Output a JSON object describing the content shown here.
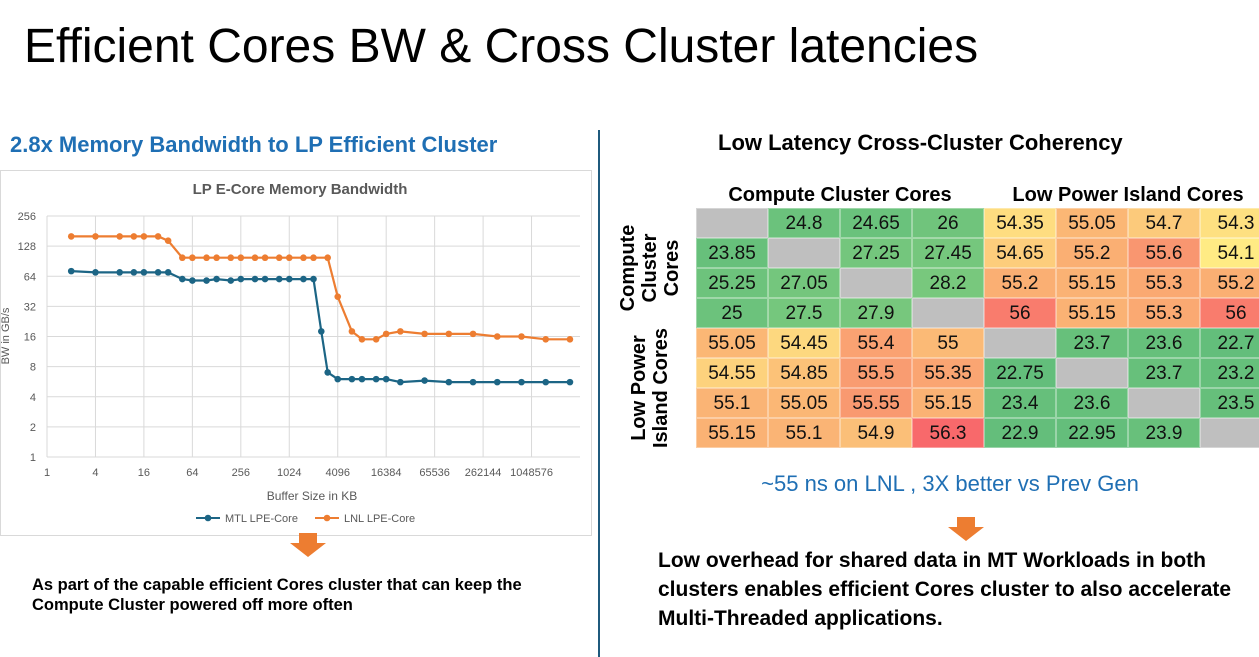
{
  "slide_title": "Efficient Cores BW & Cross Cluster latencies",
  "left_heading": "2.8x Memory Bandwidth to LP Efficient Cluster",
  "right_heading": "Low Latency Cross-Cluster Coherency",
  "left_note": "As part of the capable efficient Cores cluster that can keep the Compute Cluster powered off more often",
  "latency_caption": "~55 ns on LNL , 3X better vs Prev Gen",
  "right_note": "Low overhead for shared data in MT Workloads in both clusters enables efficient Cores cluster to also accelerate Multi-Threaded applications.",
  "colors": {
    "accent_blue": "#1f6fb4",
    "mtl": "#1c6585",
    "lnl": "#ed7d31",
    "arrow": "#ed7d31",
    "divider": "#1f5a7d"
  },
  "chart_data": [
    {
      "type": "line",
      "title": "LP E-Core Memory Bandwidth",
      "xlabel": "Buffer Size in KB",
      "ylabel": "BW in GB/s",
      "xscale": "log2",
      "yscale": "log2",
      "xlim": [
        1,
        4194304
      ],
      "ylim": [
        1,
        256
      ],
      "x_ticks": [
        "1",
        "4",
        "16",
        "64",
        "256",
        "1024",
        "4096",
        "16384",
        "65536",
        "262144",
        "1048576"
      ],
      "y_ticks": [
        "1",
        "2",
        "4",
        "8",
        "16",
        "32",
        "64",
        "128",
        "256"
      ],
      "legend_position": "bottom",
      "grid": true,
      "series": [
        {
          "name": "MTL LPE-Core",
          "color": "#1c6585",
          "points": [
            [
              2,
              72
            ],
            [
              4,
              70
            ],
            [
              8,
              70
            ],
            [
              12,
              70
            ],
            [
              16,
              70
            ],
            [
              24,
              70
            ],
            [
              32,
              70
            ],
            [
              48,
              60
            ],
            [
              64,
              58
            ],
            [
              96,
              58
            ],
            [
              128,
              60
            ],
            [
              192,
              58
            ],
            [
              256,
              60
            ],
            [
              384,
              60
            ],
            [
              512,
              60
            ],
            [
              768,
              60
            ],
            [
              1024,
              60
            ],
            [
              1536,
              60
            ],
            [
              2048,
              60
            ],
            [
              2560,
              18
            ],
            [
              3072,
              7
            ],
            [
              4096,
              6
            ],
            [
              6144,
              6
            ],
            [
              8192,
              6
            ],
            [
              12288,
              6
            ],
            [
              16384,
              6
            ],
            [
              24576,
              5.6
            ],
            [
              49152,
              5.8
            ],
            [
              98304,
              5.6
            ],
            [
              196608,
              5.6
            ],
            [
              393216,
              5.6
            ],
            [
              786432,
              5.6
            ],
            [
              1572864,
              5.6
            ],
            [
              3145728,
              5.6
            ]
          ]
        },
        {
          "name": "LNL LPE-Core",
          "color": "#ed7d31",
          "points": [
            [
              2,
              160
            ],
            [
              4,
              160
            ],
            [
              8,
              160
            ],
            [
              12,
              160
            ],
            [
              16,
              160
            ],
            [
              24,
              160
            ],
            [
              32,
              145
            ],
            [
              48,
              98
            ],
            [
              64,
              98
            ],
            [
              96,
              98
            ],
            [
              128,
              98
            ],
            [
              192,
              98
            ],
            [
              256,
              98
            ],
            [
              384,
              98
            ],
            [
              512,
              98
            ],
            [
              768,
              98
            ],
            [
              1024,
              98
            ],
            [
              1536,
              98
            ],
            [
              2048,
              98
            ],
            [
              3072,
              98
            ],
            [
              4096,
              40
            ],
            [
              6144,
              18
            ],
            [
              8192,
              15
            ],
            [
              12288,
              15
            ],
            [
              16384,
              17
            ],
            [
              24576,
              18
            ],
            [
              49152,
              17
            ],
            [
              98304,
              17
            ],
            [
              196608,
              17
            ],
            [
              393216,
              16
            ],
            [
              786432,
              16
            ],
            [
              1572864,
              15
            ],
            [
              3145728,
              15
            ]
          ]
        }
      ]
    },
    {
      "type": "heatmap",
      "title": "Low Latency Cross-Cluster Coherency",
      "column_groups": [
        "Compute Cluster Cores",
        "Low Power Island Cores"
      ],
      "row_groups": [
        "Compute Cluster Cores",
        "Low Power Island Cores"
      ],
      "values": [
        [
          null,
          24.8,
          24.65,
          26,
          54.35,
          55.05,
          54.7,
          54.3
        ],
        [
          23.85,
          null,
          27.25,
          27.45,
          54.65,
          55.2,
          55.6,
          54.1
        ],
        [
          25.25,
          27.05,
          null,
          28.2,
          55.2,
          55.15,
          55.3,
          55.2
        ],
        [
          25,
          27.5,
          27.9,
          null,
          56,
          55.15,
          55.3,
          56
        ],
        [
          55.05,
          54.45,
          55.4,
          55,
          null,
          23.7,
          23.6,
          22.7
        ],
        [
          54.55,
          54.85,
          55.5,
          55.35,
          22.75,
          null,
          23.7,
          23.2
        ],
        [
          55.1,
          55.05,
          55.55,
          55.15,
          23.4,
          23.6,
          null,
          23.5
        ],
        [
          55.15,
          55.1,
          54.9,
          56.3,
          22.9,
          22.95,
          23.9,
          null
        ]
      ]
    }
  ]
}
